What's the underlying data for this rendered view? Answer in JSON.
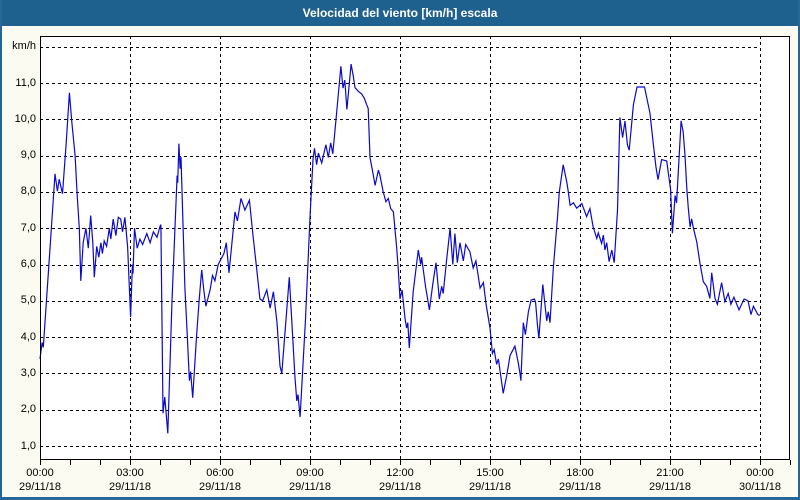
{
  "window": {
    "title": "Velocidad del viento [km/h] escala"
  },
  "colors": {
    "titlebar_bg": "#1E618F",
    "window_border": "#26679A",
    "content_bg": "#FBFBF1",
    "plot_bg": "#FFFFFF",
    "grid": "#000000",
    "axis": "#000000",
    "line": "#0A0ACD",
    "title_text": "#FFFFFF",
    "label_text": "#000000"
  },
  "chart_data": {
    "type": "line",
    "title": "Velocidad del viento [km/h] escala",
    "ylabel": "km/h",
    "series_name": "Velocidad del viento",
    "grid": "dashed",
    "legend_position": "none",
    "ylim": [
      0.5,
      12.3
    ],
    "xlim_hours": [
      0,
      25
    ],
    "data_range_hours": [
      0,
      24
    ],
    "y_tick_values": [
      1,
      2,
      3,
      4,
      5,
      6,
      7,
      8,
      9,
      10,
      11
    ],
    "y_tick_labels": [
      "1,0",
      "2,0",
      "3,0",
      "4,0",
      "5,0",
      "6,0",
      "7,0",
      "8,0",
      "9,0",
      "10,0",
      "11,0"
    ],
    "x_ticks": [
      {
        "hour": 0,
        "time": "00:00",
        "date": "29/11/18"
      },
      {
        "hour": 3,
        "time": "03:00",
        "date": "29/11/18"
      },
      {
        "hour": 6,
        "time": "06:00",
        "date": "29/11/18"
      },
      {
        "hour": 9,
        "time": "09:00",
        "date": "29/11/18"
      },
      {
        "hour": 12,
        "time": "12:00",
        "date": "29/11/18"
      },
      {
        "hour": 15,
        "time": "15:00",
        "date": "29/11/18"
      },
      {
        "hour": 18,
        "time": "18:00",
        "date": "29/11/18"
      },
      {
        "hour": 21,
        "time": "21:00",
        "date": "29/11/18"
      },
      {
        "hour": 24,
        "time": "00:00",
        "date": "30/11/18"
      }
    ],
    "minor_tick_every_hours": 1,
    "points_time_hours_vs_kmh": [
      [
        0.0,
        3.4
      ],
      [
        0.07,
        3.85
      ],
      [
        0.11,
        3.72
      ],
      [
        0.33,
        6.4
      ],
      [
        0.5,
        8.5
      ],
      [
        0.58,
        8.02
      ],
      [
        0.64,
        8.35
      ],
      [
        0.75,
        7.95
      ],
      [
        0.87,
        9.3
      ],
      [
        0.98,
        10.73
      ],
      [
        1.06,
        9.93
      ],
      [
        1.17,
        9.0
      ],
      [
        1.24,
        7.9
      ],
      [
        1.31,
        7.0
      ],
      [
        1.36,
        5.55
      ],
      [
        1.44,
        6.6
      ],
      [
        1.53,
        7.0
      ],
      [
        1.61,
        6.45
      ],
      [
        1.69,
        7.35
      ],
      [
        1.76,
        6.6
      ],
      [
        1.81,
        5.65
      ],
      [
        1.89,
        6.5
      ],
      [
        1.96,
        6.2
      ],
      [
        2.03,
        6.6
      ],
      [
        2.08,
        6.3
      ],
      [
        2.14,
        6.65
      ],
      [
        2.22,
        6.5
      ],
      [
        2.31,
        7.0
      ],
      [
        2.36,
        6.7
      ],
      [
        2.44,
        7.25
      ],
      [
        2.53,
        6.8
      ],
      [
        2.61,
        7.3
      ],
      [
        2.69,
        7.25
      ],
      [
        2.75,
        6.9
      ],
      [
        2.83,
        7.3
      ],
      [
        2.92,
        6.5
      ],
      [
        3.02,
        4.55
      ],
      [
        3.08,
        6.0
      ],
      [
        3.1,
        5.75
      ],
      [
        3.15,
        7.0
      ],
      [
        3.24,
        6.45
      ],
      [
        3.33,
        6.7
      ],
      [
        3.42,
        6.55
      ],
      [
        3.56,
        6.85
      ],
      [
        3.67,
        6.6
      ],
      [
        3.78,
        6.9
      ],
      [
        3.9,
        6.75
      ],
      [
        4.0,
        7.05
      ],
      [
        4.03,
        7.1
      ],
      [
        4.1,
        1.9
      ],
      [
        4.16,
        2.35
      ],
      [
        4.26,
        1.35
      ],
      [
        4.4,
        5.0
      ],
      [
        4.57,
        8.45
      ],
      [
        4.59,
        8.25
      ],
      [
        4.63,
        9.33
      ],
      [
        4.67,
        8.64
      ],
      [
        4.7,
        8.96
      ],
      [
        4.83,
        5.35
      ],
      [
        4.9,
        4.2
      ],
      [
        4.98,
        2.8
      ],
      [
        5.02,
        3.05
      ],
      [
        5.09,
        2.33
      ],
      [
        5.22,
        4.05
      ],
      [
        5.31,
        5.07
      ],
      [
        5.39,
        5.85
      ],
      [
        5.46,
        5.3
      ],
      [
        5.53,
        4.85
      ],
      [
        5.67,
        5.3
      ],
      [
        5.75,
        5.7
      ],
      [
        5.83,
        5.55
      ],
      [
        5.94,
        6.0
      ],
      [
        6.13,
        6.3
      ],
      [
        6.21,
        6.6
      ],
      [
        6.3,
        5.77
      ],
      [
        6.5,
        7.45
      ],
      [
        6.58,
        7.2
      ],
      [
        6.7,
        7.82
      ],
      [
        6.83,
        7.5
      ],
      [
        6.98,
        7.77
      ],
      [
        7.1,
        6.8
      ],
      [
        7.22,
        5.9
      ],
      [
        7.33,
        5.05
      ],
      [
        7.42,
        5.0
      ],
      [
        7.56,
        5.3
      ],
      [
        7.67,
        4.8
      ],
      [
        7.78,
        5.25
      ],
      [
        7.9,
        4.4
      ],
      [
        8.0,
        3.2
      ],
      [
        8.06,
        3.0
      ],
      [
        8.31,
        5.65
      ],
      [
        8.5,
        2.88
      ],
      [
        8.56,
        2.24
      ],
      [
        8.6,
        2.42
      ],
      [
        8.67,
        1.8
      ],
      [
        8.85,
        4.5
      ],
      [
        9.0,
        7.3
      ],
      [
        9.1,
        8.9
      ],
      [
        9.15,
        9.2
      ],
      [
        9.22,
        8.75
      ],
      [
        9.28,
        9.07
      ],
      [
        9.39,
        8.8
      ],
      [
        9.53,
        9.3
      ],
      [
        9.61,
        8.95
      ],
      [
        9.69,
        9.35
      ],
      [
        9.76,
        9.05
      ],
      [
        9.89,
        10.2
      ],
      [
        10.03,
        11.46
      ],
      [
        10.1,
        10.86
      ],
      [
        10.16,
        11.08
      ],
      [
        10.23,
        10.27
      ],
      [
        10.37,
        11.52
      ],
      [
        10.44,
        11.2
      ],
      [
        10.5,
        10.87
      ],
      [
        10.61,
        10.77
      ],
      [
        10.72,
        10.7
      ],
      [
        10.81,
        10.58
      ],
      [
        10.89,
        10.4
      ],
      [
        10.94,
        10.3
      ],
      [
        11.0,
        8.95
      ],
      [
        11.11,
        8.46
      ],
      [
        11.17,
        8.18
      ],
      [
        11.28,
        8.6
      ],
      [
        11.33,
        8.46
      ],
      [
        11.44,
        8.0
      ],
      [
        11.53,
        7.73
      ],
      [
        11.61,
        7.82
      ],
      [
        11.69,
        7.54
      ],
      [
        11.78,
        7.45
      ],
      [
        11.89,
        6.45
      ],
      [
        11.94,
        5.9
      ],
      [
        12.0,
        5.05
      ],
      [
        12.07,
        5.3
      ],
      [
        12.17,
        4.5
      ],
      [
        12.22,
        4.25
      ],
      [
        12.26,
        4.4
      ],
      [
        12.31,
        3.7
      ],
      [
        12.44,
        5.25
      ],
      [
        12.61,
        6.4
      ],
      [
        12.69,
        6.0
      ],
      [
        12.72,
        6.2
      ],
      [
        12.85,
        5.4
      ],
      [
        12.98,
        4.75
      ],
      [
        13.1,
        5.5
      ],
      [
        13.2,
        6.05
      ],
      [
        13.31,
        5.05
      ],
      [
        13.39,
        5.4
      ],
      [
        13.44,
        5.2
      ],
      [
        13.55,
        6.1
      ],
      [
        13.67,
        7.0
      ],
      [
        13.76,
        6.0
      ],
      [
        13.83,
        6.85
      ],
      [
        13.91,
        6.05
      ],
      [
        14.0,
        6.6
      ],
      [
        14.11,
        6.1
      ],
      [
        14.19,
        6.55
      ],
      [
        14.33,
        6.35
      ],
      [
        14.44,
        5.9
      ],
      [
        14.53,
        6.1
      ],
      [
        14.67,
        5.35
      ],
      [
        14.78,
        5.5
      ],
      [
        14.87,
        4.9
      ],
      [
        15.0,
        4.25
      ],
      [
        15.08,
        3.55
      ],
      [
        15.14,
        3.65
      ],
      [
        15.22,
        3.25
      ],
      [
        15.28,
        3.4
      ],
      [
        15.44,
        2.45
      ],
      [
        15.56,
        2.95
      ],
      [
        15.67,
        3.5
      ],
      [
        15.83,
        3.75
      ],
      [
        15.94,
        3.3
      ],
      [
        16.0,
        3.0
      ],
      [
        16.03,
        2.8
      ],
      [
        16.11,
        4.4
      ],
      [
        16.18,
        4.07
      ],
      [
        16.28,
        4.7
      ],
      [
        16.37,
        5.02
      ],
      [
        16.48,
        5.05
      ],
      [
        16.52,
        4.95
      ],
      [
        16.58,
        4.35
      ],
      [
        16.63,
        3.97
      ],
      [
        16.76,
        5.45
      ],
      [
        16.89,
        4.45
      ],
      [
        16.94,
        4.7
      ],
      [
        17.0,
        4.4
      ],
      [
        17.11,
        5.9
      ],
      [
        17.25,
        7.3
      ],
      [
        17.31,
        8.0
      ],
      [
        17.44,
        8.75
      ],
      [
        17.56,
        8.27
      ],
      [
        17.61,
        8.0
      ],
      [
        17.67,
        7.63
      ],
      [
        17.78,
        7.7
      ],
      [
        17.89,
        7.55
      ],
      [
        18.06,
        7.68
      ],
      [
        18.22,
        7.32
      ],
      [
        18.33,
        7.54
      ],
      [
        18.44,
        7.03
      ],
      [
        18.56,
        6.72
      ],
      [
        18.61,
        6.87
      ],
      [
        18.72,
        6.58
      ],
      [
        18.78,
        6.81
      ],
      [
        18.83,
        6.4
      ],
      [
        18.89,
        6.6
      ],
      [
        18.97,
        6.08
      ],
      [
        19.06,
        6.4
      ],
      [
        19.14,
        6.05
      ],
      [
        19.25,
        7.5
      ],
      [
        19.33,
        10.05
      ],
      [
        19.42,
        9.5
      ],
      [
        19.5,
        9.95
      ],
      [
        19.58,
        9.3
      ],
      [
        19.64,
        9.15
      ],
      [
        19.78,
        10.4
      ],
      [
        19.9,
        10.89
      ],
      [
        20.15,
        10.89
      ],
      [
        20.33,
        10.18
      ],
      [
        20.44,
        9.35
      ],
      [
        20.53,
        8.7
      ],
      [
        20.6,
        8.34
      ],
      [
        20.72,
        8.89
      ],
      [
        20.89,
        8.85
      ],
      [
        21.02,
        8.06
      ],
      [
        21.08,
        6.86
      ],
      [
        21.17,
        7.9
      ],
      [
        21.22,
        7.7
      ],
      [
        21.37,
        9.96
      ],
      [
        21.44,
        9.65
      ],
      [
        21.5,
        9.0
      ],
      [
        21.56,
        8.1
      ],
      [
        21.61,
        7.55
      ],
      [
        21.67,
        7.03
      ],
      [
        21.72,
        7.26
      ],
      [
        21.78,
        7.0
      ],
      [
        21.89,
        6.63
      ],
      [
        22.0,
        6.03
      ],
      [
        22.11,
        5.53
      ],
      [
        22.22,
        5.4
      ],
      [
        22.33,
        5.07
      ],
      [
        22.39,
        5.77
      ],
      [
        22.5,
        5.07
      ],
      [
        22.58,
        4.9
      ],
      [
        22.72,
        5.5
      ],
      [
        22.83,
        4.98
      ],
      [
        22.94,
        5.2
      ],
      [
        23.03,
        4.9
      ],
      [
        23.13,
        5.1
      ],
      [
        23.3,
        4.75
      ],
      [
        23.47,
        5.05
      ],
      [
        23.6,
        5.0
      ],
      [
        23.7,
        4.62
      ],
      [
        23.78,
        4.85
      ],
      [
        23.93,
        4.62
      ],
      [
        24.0,
        4.6
      ]
    ]
  }
}
